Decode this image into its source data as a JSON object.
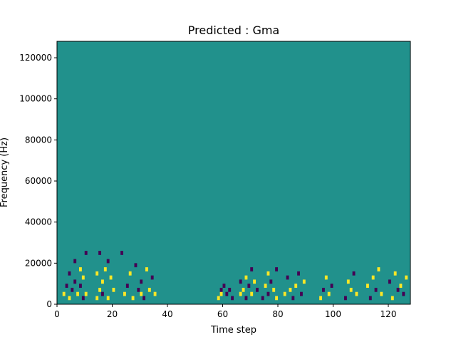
{
  "chart_data": {
    "type": "heatmap",
    "title": "Predicted : Gma",
    "xlabel": "Time step",
    "ylabel": "Frequency (Hz)",
    "xlim": [
      0,
      128
    ],
    "ylim": [
      0,
      128000
    ],
    "grid": false,
    "legend": "none",
    "xticks": [
      0,
      20,
      40,
      60,
      80,
      100,
      120
    ],
    "yticks": [
      0,
      20000,
      40000,
      60000,
      80000,
      100000,
      120000
    ],
    "xtick_labels": [
      "0",
      "20",
      "40",
      "60",
      "80",
      "100",
      "120"
    ],
    "ytick_labels": [
      "0",
      "20000",
      "40000",
      "60000",
      "80000",
      "100000",
      "120000"
    ],
    "n_time_steps": 128,
    "n_freq_bins": 64,
    "bin_width_hz": 2000,
    "levels": {
      "low": -1,
      "mid": 0,
      "high": 1
    },
    "colors": {
      "low": "#440154",
      "mid": "#21918c",
      "high": "#fde725"
    },
    "background_level": 0,
    "cells": [
      [
        2,
        2,
        1
      ],
      [
        3,
        4,
        -1
      ],
      [
        4,
        1,
        1
      ],
      [
        4,
        7,
        -1
      ],
      [
        5,
        3,
        -1
      ],
      [
        6,
        5,
        -1
      ],
      [
        6,
        10,
        -1
      ],
      [
        7,
        2,
        1
      ],
      [
        8,
        4,
        -1
      ],
      [
        8,
        8,
        1
      ],
      [
        9,
        1,
        -1
      ],
      [
        9,
        6,
        1
      ],
      [
        10,
        2,
        1
      ],
      [
        10,
        12,
        -1
      ],
      [
        14,
        1,
        1
      ],
      [
        14,
        7,
        1
      ],
      [
        15,
        3,
        1
      ],
      [
        15,
        12,
        -1
      ],
      [
        16,
        2,
        -1
      ],
      [
        16,
        5,
        1
      ],
      [
        17,
        8,
        1
      ],
      [
        18,
        1,
        1
      ],
      [
        18,
        10,
        -1
      ],
      [
        19,
        6,
        1
      ],
      [
        20,
        3,
        1
      ],
      [
        23,
        12,
        -1
      ],
      [
        24,
        2,
        1
      ],
      [
        25,
        4,
        -1
      ],
      [
        26,
        7,
        1
      ],
      [
        27,
        1,
        1
      ],
      [
        28,
        9,
        -1
      ],
      [
        29,
        3,
        -1
      ],
      [
        30,
        2,
        1
      ],
      [
        30,
        5,
        -1
      ],
      [
        31,
        1,
        -1
      ],
      [
        32,
        8,
        1
      ],
      [
        33,
        3,
        1
      ],
      [
        34,
        6,
        -1
      ],
      [
        35,
        2,
        1
      ],
      [
        58,
        1,
        1
      ],
      [
        59,
        2,
        1
      ],
      [
        59,
        3,
        -1
      ],
      [
        61,
        2,
        -1
      ],
      [
        60,
        4,
        -1
      ],
      [
        62,
        3,
        -1
      ],
      [
        63,
        1,
        -1
      ],
      [
        66,
        2,
        1
      ],
      [
        66,
        5,
        -1
      ],
      [
        67,
        3,
        1
      ],
      [
        68,
        1,
        -1
      ],
      [
        68,
        6,
        1
      ],
      [
        69,
        4,
        -1
      ],
      [
        70,
        2,
        1
      ],
      [
        70,
        8,
        -1
      ],
      [
        71,
        5,
        1
      ],
      [
        72,
        3,
        -1
      ],
      [
        74,
        1,
        -1
      ],
      [
        75,
        4,
        1
      ],
      [
        76,
        2,
        -1
      ],
      [
        76,
        7,
        1
      ],
      [
        77,
        5,
        -1
      ],
      [
        78,
        3,
        1
      ],
      [
        79,
        1,
        1
      ],
      [
        79,
        8,
        -1
      ],
      [
        82,
        2,
        1
      ],
      [
        83,
        6,
        -1
      ],
      [
        84,
        3,
        1
      ],
      [
        85,
        1,
        -1
      ],
      [
        86,
        4,
        1
      ],
      [
        87,
        7,
        -1
      ],
      [
        88,
        2,
        -1
      ],
      [
        89,
        5,
        1
      ],
      [
        95,
        1,
        1
      ],
      [
        96,
        3,
        -1
      ],
      [
        97,
        6,
        1
      ],
      [
        98,
        2,
        1
      ],
      [
        99,
        4,
        -1
      ],
      [
        104,
        1,
        -1
      ],
      [
        105,
        5,
        1
      ],
      [
        106,
        3,
        1
      ],
      [
        107,
        7,
        -1
      ],
      [
        108,
        2,
        1
      ],
      [
        112,
        4,
        1
      ],
      [
        113,
        1,
        -1
      ],
      [
        114,
        6,
        1
      ],
      [
        115,
        3,
        -1
      ],
      [
        116,
        8,
        1
      ],
      [
        117,
        2,
        1
      ],
      [
        120,
        5,
        -1
      ],
      [
        121,
        1,
        1
      ],
      [
        122,
        7,
        1
      ],
      [
        123,
        3,
        -1
      ],
      [
        124,
        4,
        1
      ],
      [
        125,
        2,
        -1
      ],
      [
        126,
        6,
        1
      ]
    ]
  }
}
